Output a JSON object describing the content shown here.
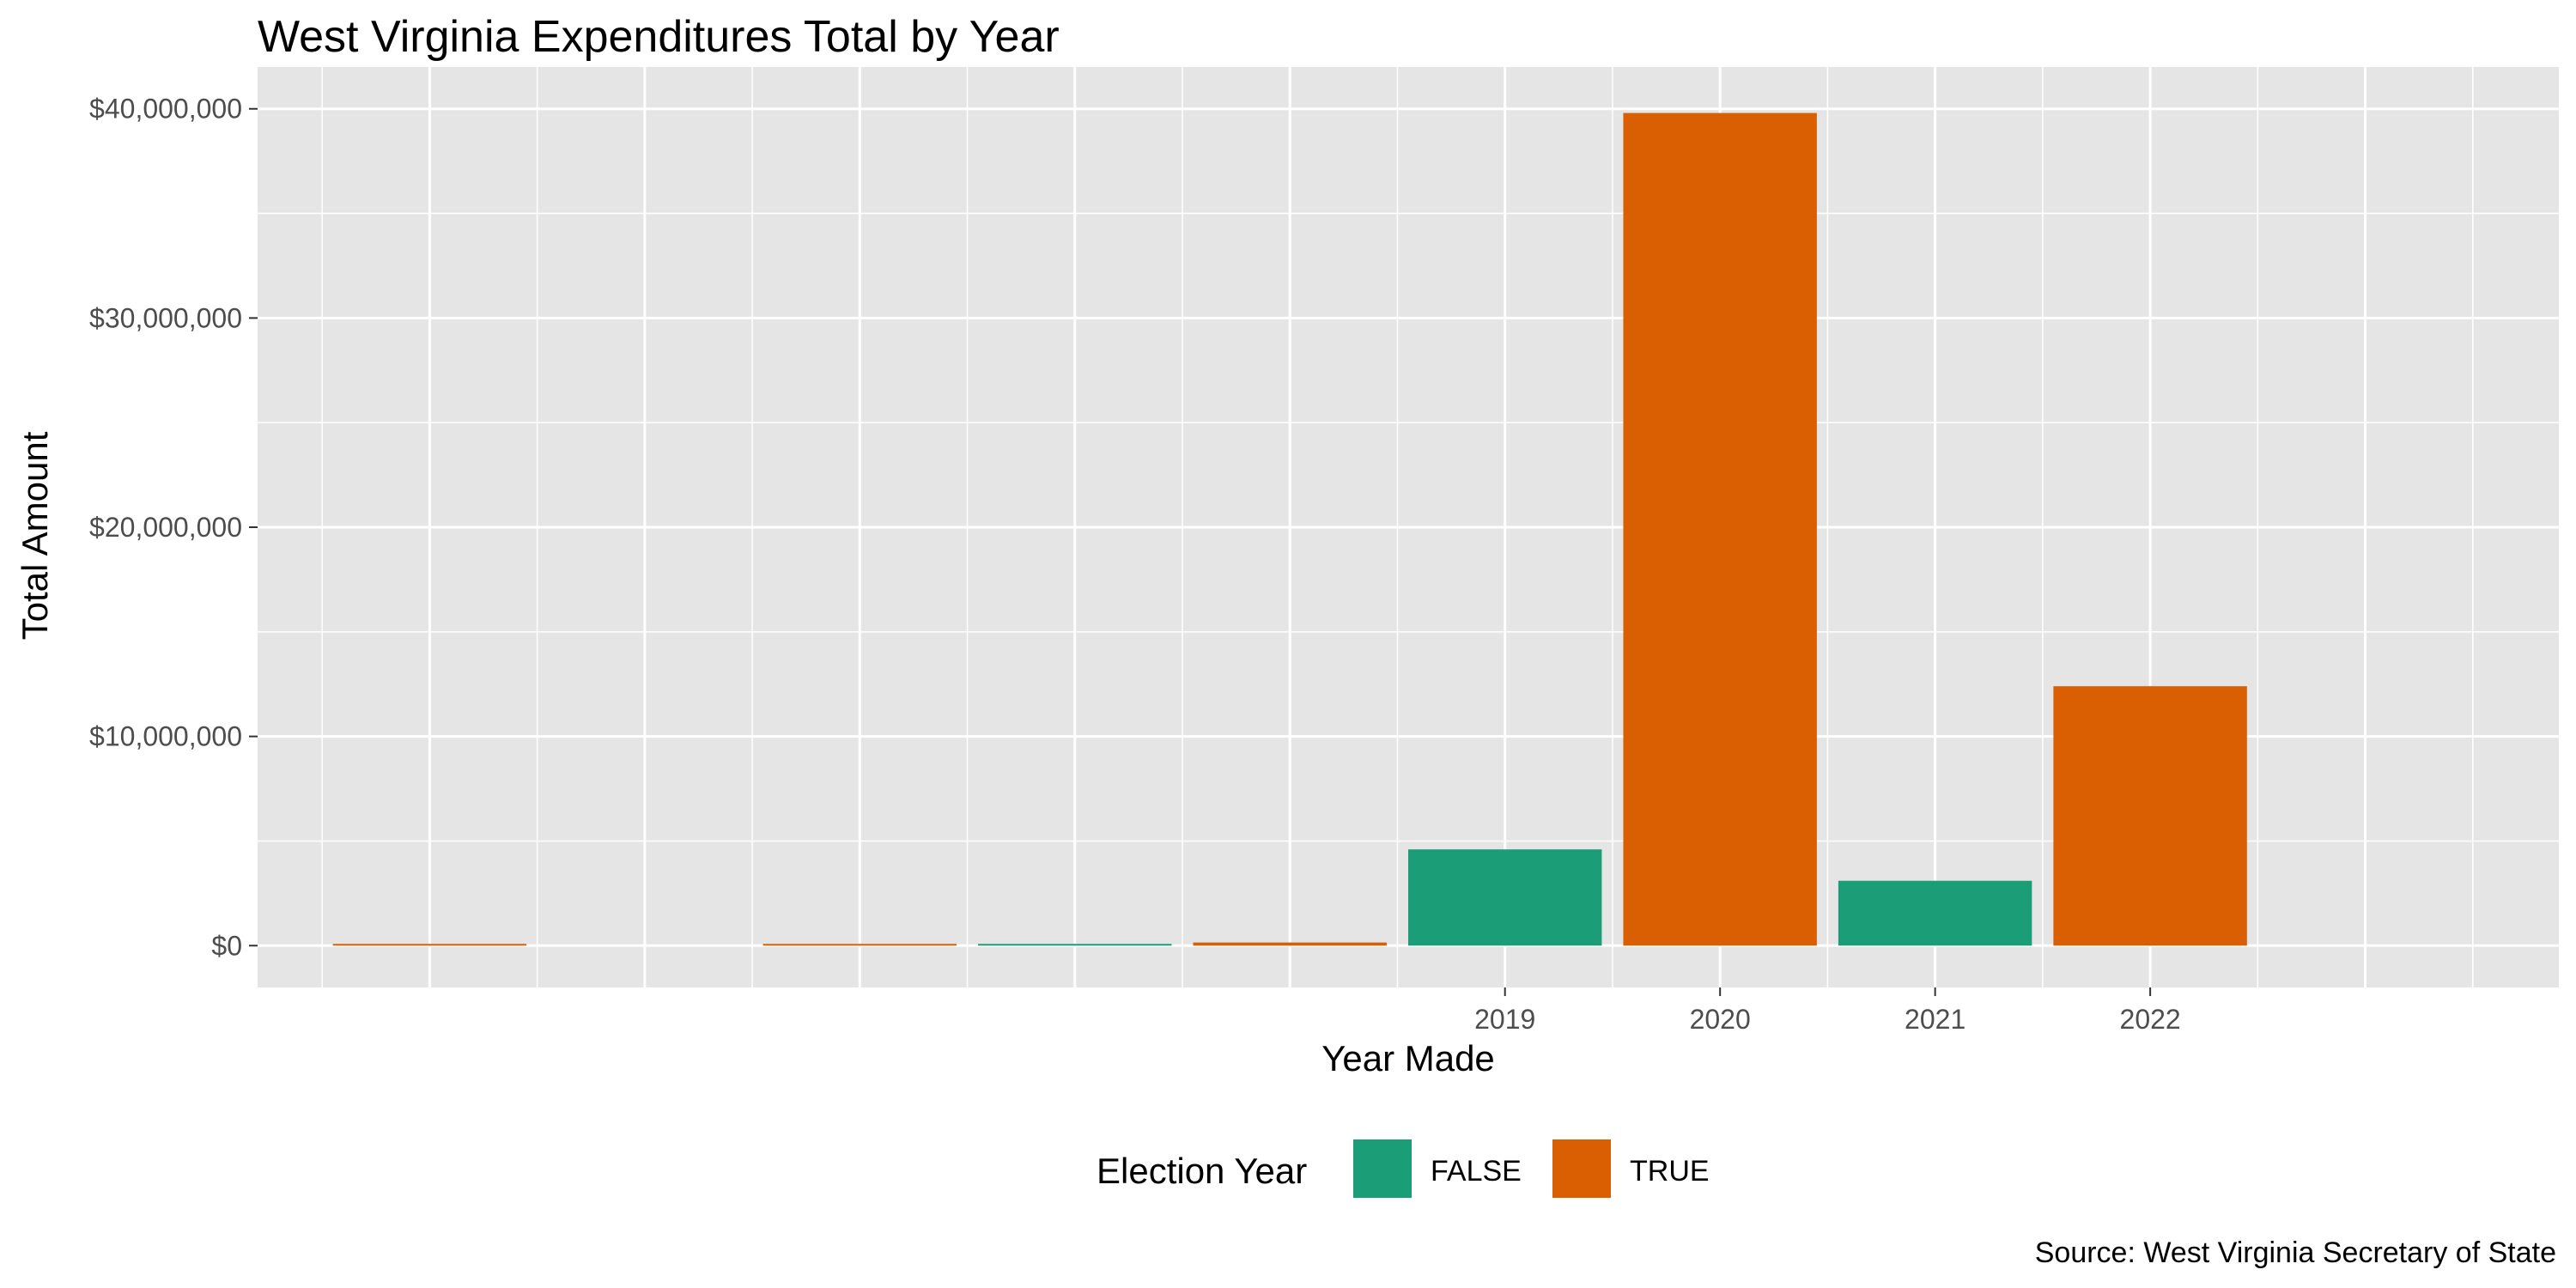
{
  "chart_data": {
    "type": "bar",
    "title": "West Virginia Expenditures Total by Year",
    "xlabel": "Year Made",
    "ylabel": "Total Amount",
    "caption": "Source: West Virginia Secretary of State",
    "grid": true,
    "ylim": [
      -2000000,
      42000000
    ],
    "y_ticks": [
      0,
      10000000,
      20000000,
      30000000,
      40000000
    ],
    "y_tick_labels": [
      "$0",
      "$10,000,000",
      "$20,000,000",
      "$30,000,000",
      "$40,000,000"
    ],
    "x_range": [
      2013.2,
      2023.9
    ],
    "x_ticks": [
      2019,
      2020,
      2021,
      2022
    ],
    "x_tick_labels": [
      "2019",
      "2020",
      "2021",
      "2022"
    ],
    "bars": [
      {
        "x": 2014,
        "value": 5000,
        "election_year": "TRUE"
      },
      {
        "x": 2016,
        "value": 60000,
        "election_year": "TRUE"
      },
      {
        "x": 2017,
        "value": 30000,
        "election_year": "FALSE"
      },
      {
        "x": 2018,
        "value": 150000,
        "election_year": "TRUE"
      },
      {
        "x": 2019,
        "value": 4600000,
        "election_year": "FALSE"
      },
      {
        "x": 2020,
        "value": 39800000,
        "election_year": "TRUE"
      },
      {
        "x": 2021,
        "value": 3100000,
        "election_year": "FALSE"
      },
      {
        "x": 2022,
        "value": 12400000,
        "election_year": "TRUE"
      }
    ],
    "legend": {
      "title": "Election Year",
      "position": "bottom",
      "entries": [
        {
          "label": "FALSE",
          "color": "#1b9e77"
        },
        {
          "label": "TRUE",
          "color": "#d95f02"
        }
      ]
    },
    "panel_background": "#e5e5e5",
    "grid_color": "#ffffff"
  }
}
